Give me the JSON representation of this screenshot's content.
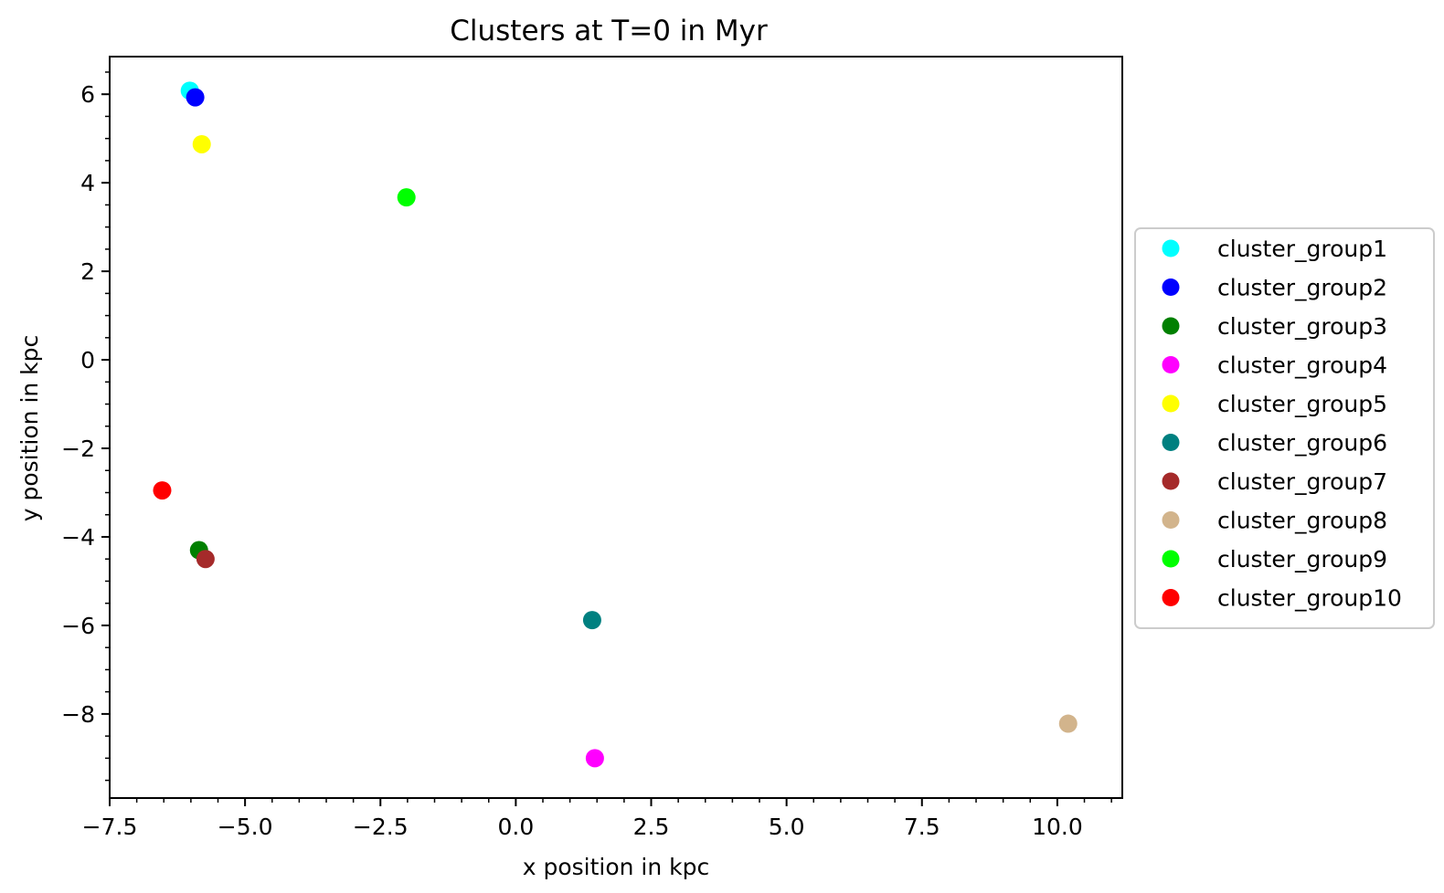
{
  "chart_data": {
    "type": "scatter",
    "title": "Clusters at T=0 in Myr",
    "xlabel": "x position in kpc",
    "ylabel": "y position in kpc",
    "xlim": [
      -7.5,
      11.2
    ],
    "ylim": [
      -9.9,
      6.85
    ],
    "x_ticks": [
      -7.5,
      -5.0,
      -2.5,
      0.0,
      2.5,
      5.0,
      7.5,
      10.0
    ],
    "x_tick_labels": [
      "−7.5",
      "−5.0",
      "−2.5",
      "0.0",
      "2.5",
      "5.0",
      "7.5",
      "10.0"
    ],
    "y_ticks": [
      6,
      4,
      2,
      0,
      -2,
      -4,
      -6,
      -8
    ],
    "y_tick_labels": [
      "6",
      "4",
      "2",
      "0",
      "−2",
      "−4",
      "−6",
      "−8"
    ],
    "grid": false,
    "legend_position": "right, outside plot",
    "series": [
      {
        "name": "cluster_group1",
        "color": "#00ffff",
        "x": [
          -6.02
        ],
        "y": [
          6.08
        ]
      },
      {
        "name": "cluster_group2",
        "color": "#0000ff",
        "x": [
          -5.92
        ],
        "y": [
          5.93
        ]
      },
      {
        "name": "cluster_group3",
        "color": "#008000",
        "x": [
          -5.85
        ],
        "y": [
          -4.3
        ]
      },
      {
        "name": "cluster_group4",
        "color": "#ff00ff",
        "x": [
          1.46
        ],
        "y": [
          -9.0
        ]
      },
      {
        "name": "cluster_group5",
        "color": "#ffff00",
        "x": [
          -5.8
        ],
        "y": [
          4.87
        ]
      },
      {
        "name": "cluster_group6",
        "color": "#008080",
        "x": [
          1.41
        ],
        "y": [
          -5.88
        ]
      },
      {
        "name": "cluster_group7",
        "color": "#a52a2a",
        "x": [
          -5.73
        ],
        "y": [
          -4.5
        ]
      },
      {
        "name": "cluster_group8",
        "color": "#d2b48c",
        "x": [
          10.2
        ],
        "y": [
          -8.22
        ]
      },
      {
        "name": "cluster_group9",
        "color": "#00ff00",
        "x": [
          -2.02
        ],
        "y": [
          3.67
        ]
      },
      {
        "name": "cluster_group10",
        "color": "#ff0000",
        "x": [
          -6.53
        ],
        "y": [
          -2.95
        ]
      }
    ]
  }
}
